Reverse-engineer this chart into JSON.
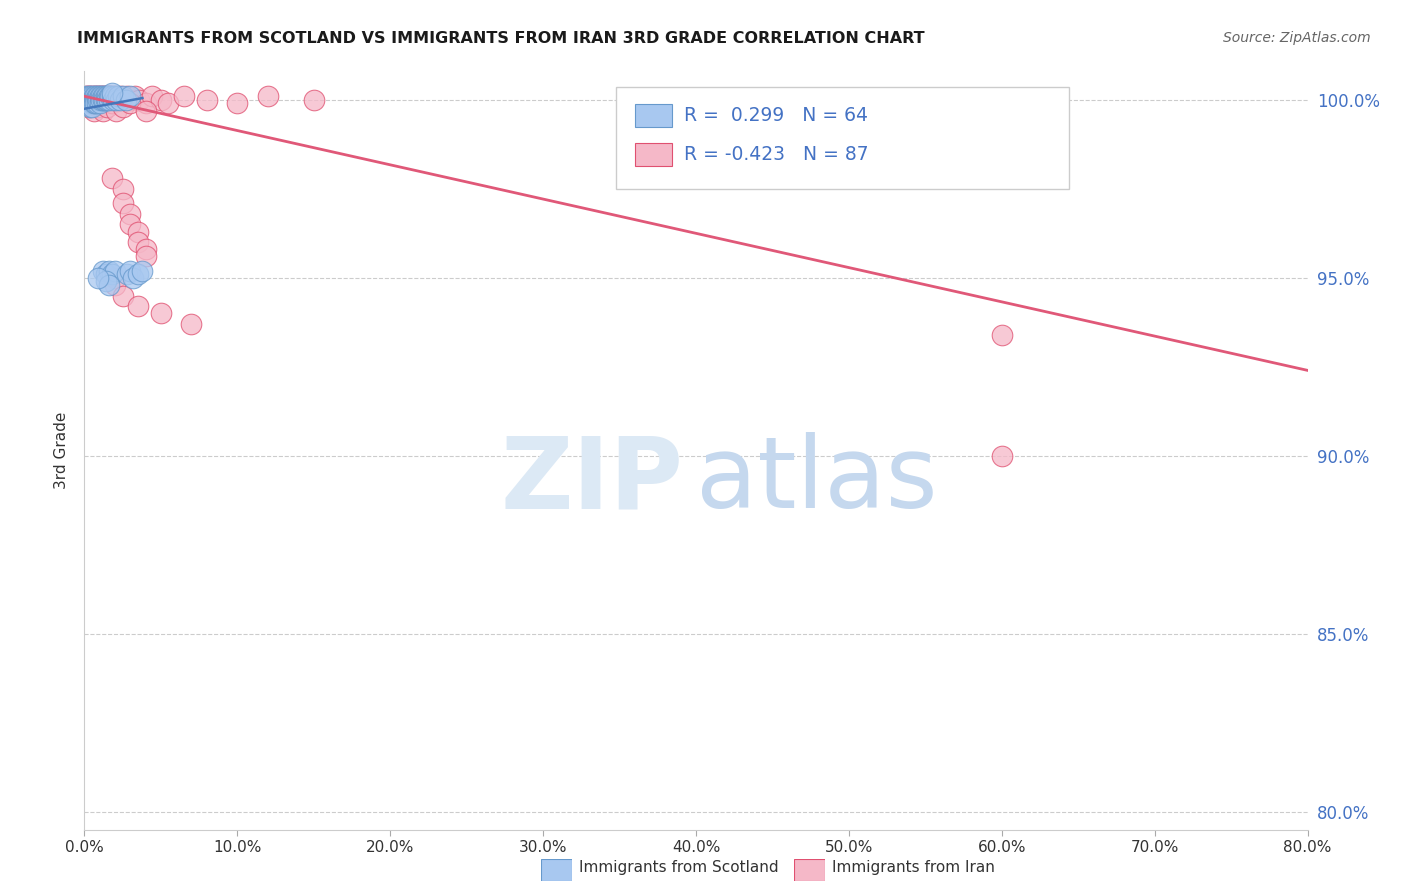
{
  "title": "IMMIGRANTS FROM SCOTLAND VS IMMIGRANTS FROM IRAN 3RD GRADE CORRELATION CHART",
  "source": "Source: ZipAtlas.com",
  "ylabel": "3rd Grade",
  "xlim": [
    0.0,
    0.8
  ],
  "ylim": [
    0.795,
    1.008
  ],
  "x_tick_vals": [
    0.0,
    0.1,
    0.2,
    0.3,
    0.4,
    0.5,
    0.6,
    0.7,
    0.8
  ],
  "x_tick_labels": [
    "0.0%",
    "10.0%",
    "20.0%",
    "30.0%",
    "40.0%",
    "50.0%",
    "60.0%",
    "70.0%",
    "80.0%"
  ],
  "y_tick_vals": [
    0.8,
    0.85,
    0.9,
    0.95,
    1.0
  ],
  "y_tick_labels": [
    "80.0%",
    "85.0%",
    "90.0%",
    "95.0%",
    "100.0%"
  ],
  "legend_scotland": "Immigrants from Scotland",
  "legend_iran": "Immigrants from Iran",
  "R_scotland": 0.299,
  "N_scotland": 64,
  "R_iran": -0.423,
  "N_iran": 87,
  "color_scotland": "#A8C8F0",
  "color_iran": "#F5B8C8",
  "edge_scotland": "#6699CC",
  "edge_iran": "#E05070",
  "trendline_scotland_color": "#4477BB",
  "trendline_iran_color": "#E05878",
  "trendline_iran_x0": 0.0,
  "trendline_iran_y0": 1.001,
  "trendline_iran_x1": 0.8,
  "trendline_iran_y1": 0.924,
  "trendline_scotland_x0": 0.0,
  "trendline_scotland_y0": 0.9975,
  "trendline_scotland_x1": 0.038,
  "trendline_scotland_y1": 1.0005,
  "scotland_x": [
    0.001,
    0.002,
    0.002,
    0.003,
    0.003,
    0.003,
    0.004,
    0.004,
    0.004,
    0.004,
    0.005,
    0.005,
    0.005,
    0.005,
    0.006,
    0.006,
    0.006,
    0.007,
    0.007,
    0.007,
    0.008,
    0.008,
    0.008,
    0.009,
    0.009,
    0.01,
    0.01,
    0.01,
    0.011,
    0.011,
    0.012,
    0.012,
    0.013,
    0.013,
    0.014,
    0.014,
    0.015,
    0.015,
    0.016,
    0.016,
    0.017,
    0.018,
    0.019,
    0.02,
    0.021,
    0.022,
    0.023,
    0.025,
    0.027,
    0.03,
    0.012,
    0.014,
    0.016,
    0.018,
    0.02,
    0.014,
    0.016,
    0.028,
    0.03,
    0.032,
    0.035,
    0.038,
    0.009,
    0.018
  ],
  "scotland_y": [
    1.001,
    1.0,
    0.999,
    1.001,
    1.0,
    0.999,
    1.001,
    1.0,
    0.999,
    0.998,
    1.001,
    1.0,
    0.999,
    0.998,
    1.001,
    1.0,
    0.999,
    1.001,
    1.0,
    0.999,
    1.001,
    1.0,
    0.999,
    1.001,
    1.0,
    1.001,
    1.0,
    0.999,
    1.001,
    1.0,
    1.001,
    1.0,
    1.001,
    1.0,
    1.001,
    1.0,
    1.001,
    1.0,
    1.001,
    1.0,
    1.001,
    1.001,
    1.0,
    1.001,
    1.0,
    1.001,
    1.0,
    1.001,
    1.0,
    1.001,
    0.952,
    0.951,
    0.952,
    0.951,
    0.952,
    0.949,
    0.948,
    0.951,
    0.952,
    0.95,
    0.951,
    0.952,
    0.95,
    1.002
  ],
  "iran_x": [
    0.001,
    0.001,
    0.002,
    0.002,
    0.002,
    0.003,
    0.003,
    0.003,
    0.003,
    0.004,
    0.004,
    0.004,
    0.005,
    0.005,
    0.005,
    0.006,
    0.006,
    0.006,
    0.007,
    0.007,
    0.007,
    0.008,
    0.008,
    0.008,
    0.009,
    0.009,
    0.01,
    0.01,
    0.011,
    0.011,
    0.012,
    0.012,
    0.013,
    0.013,
    0.014,
    0.014,
    0.015,
    0.015,
    0.016,
    0.017,
    0.018,
    0.019,
    0.02,
    0.021,
    0.022,
    0.024,
    0.026,
    0.028,
    0.03,
    0.033,
    0.036,
    0.04,
    0.044,
    0.05,
    0.055,
    0.065,
    0.08,
    0.1,
    0.12,
    0.15,
    0.003,
    0.006,
    0.009,
    0.012,
    0.015,
    0.018,
    0.021,
    0.025,
    0.03,
    0.04,
    0.018,
    0.025,
    0.025,
    0.03,
    0.03,
    0.035,
    0.035,
    0.04,
    0.04,
    0.02,
    0.02,
    0.025,
    0.035,
    0.05,
    0.07,
    0.6,
    0.6
  ],
  "iran_y": [
    1.001,
    1.0,
    1.001,
    1.0,
    0.999,
    1.001,
    1.0,
    0.999,
    0.998,
    1.001,
    1.0,
    0.999,
    1.001,
    1.0,
    0.999,
    1.001,
    1.0,
    0.999,
    1.001,
    1.0,
    0.999,
    1.001,
    1.0,
    0.999,
    1.001,
    1.0,
    1.001,
    1.0,
    1.001,
    1.0,
    1.001,
    1.0,
    1.001,
    1.0,
    1.001,
    1.0,
    1.001,
    1.0,
    1.001,
    1.001,
    1.0,
    1.001,
    1.0,
    1.001,
    1.0,
    1.001,
    1.0,
    1.001,
    1.0,
    1.001,
    1.0,
    0.999,
    1.001,
    1.0,
    0.999,
    1.001,
    1.0,
    0.999,
    1.001,
    1.0,
    0.998,
    0.997,
    0.998,
    0.997,
    0.998,
    0.999,
    0.997,
    0.998,
    0.999,
    0.997,
    0.978,
    0.975,
    0.971,
    0.968,
    0.965,
    0.963,
    0.96,
    0.958,
    0.956,
    0.95,
    0.948,
    0.945,
    0.942,
    0.94,
    0.937,
    0.934,
    0.9
  ]
}
